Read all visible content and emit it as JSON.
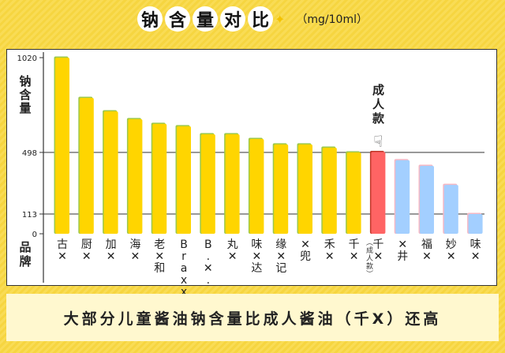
{
  "title": {
    "chars": [
      "钠",
      "含",
      "量",
      "对",
      "比"
    ],
    "unit": "（mg/10ml）"
  },
  "chart_data": {
    "type": "bar",
    "ylabel": "钠含量",
    "xlabel": "品牌",
    "yticks": [
      0,
      113,
      498,
      1020
    ],
    "ylim": [
      0,
      1020
    ],
    "reference_lines": [
      498,
      113
    ],
    "categories": [
      "古X",
      "厨X",
      "加X",
      "海X",
      "老X和",
      "Braxx",
      "B.X.",
      "丸X",
      "味X达",
      "缘X记",
      "X兜",
      "禾X",
      "千X",
      "千X",
      "X井",
      "福X",
      "妙X",
      "味X"
    ],
    "category_notes": [
      "",
      "",
      "",
      "",
      "",
      "",
      "",
      "",
      "",
      "",
      "",
      "",
      "",
      "（成人款）",
      "",
      "",
      "",
      ""
    ],
    "values": [
      1020,
      798,
      724,
      681,
      655,
      642,
      598,
      598,
      572,
      542,
      542,
      524,
      498,
      500,
      449,
      414,
      295,
      113
    ],
    "bar_groups": [
      "kids",
      "kids",
      "kids",
      "kids",
      "kids",
      "kids",
      "kids",
      "kids",
      "kids",
      "kids",
      "kids",
      "kids",
      "kids",
      "adult",
      "kids-low",
      "kids-low",
      "kids-low",
      "kids-low"
    ],
    "colors": {
      "kids": "#FFD500",
      "kids_shadow": "#9cc84a",
      "adult": "#FF6464",
      "adult_shadow": "#c0392b",
      "kids-low": "#A3CFFF",
      "kids-low_shadow": "#f5b8c4"
    },
    "annotation": {
      "text": "成人款",
      "icon": "pointing-down-hand-icon"
    },
    "grid": false
  },
  "banner": {
    "text": "大部分儿童酱油钠含量比成人酱油（千X）还高"
  }
}
